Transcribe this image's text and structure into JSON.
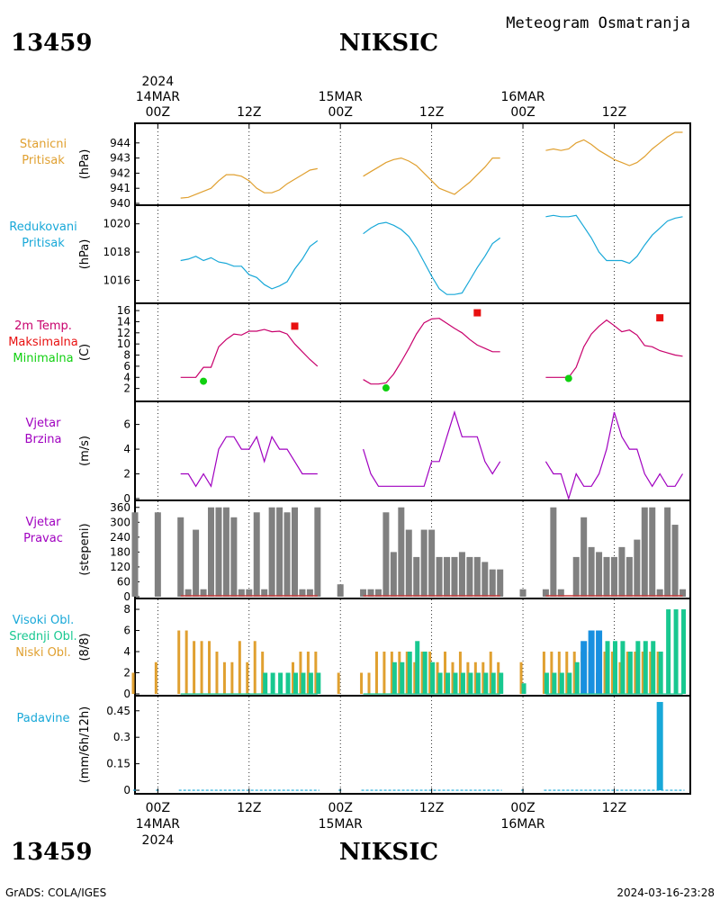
{
  "header": {
    "station_id": "13459",
    "station_name": "NIKSIC",
    "subtitle": "Meteogram Osmatranja"
  },
  "footer": {
    "station_id": "13459",
    "station_name": "NIKSIC",
    "credit": "GrADS: COLA/IGES",
    "timestamp": "2024-03-16-23:28"
  },
  "time_axis": {
    "year": "2024",
    "ticks": [
      {
        "t": 0,
        "time": "00Z",
        "date": "14MAR",
        "year": "2024"
      },
      {
        "t": 12,
        "time": "12Z"
      },
      {
        "t": 24,
        "time": "00Z",
        "date": "15MAR"
      },
      {
        "t": 36,
        "time": "12Z"
      },
      {
        "t": 48,
        "time": "00Z",
        "date": "16MAR"
      },
      {
        "t": 60,
        "time": "12Z"
      }
    ],
    "range_hours": [
      -3,
      70
    ]
  },
  "colors": {
    "pressure": "#e0a030",
    "reduced_pressure": "#18a8d8",
    "temperature": "#c8006c",
    "max": "#e81010",
    "min": "#10d010",
    "wind_speed": "#a000c0",
    "wind_dir_bar": "#808080",
    "wind_dir_base": "#c83c3c",
    "low_cloud": "#e0a030",
    "mid_cloud": "#18c890",
    "high_cloud": "#1890e0",
    "precip": "#18a8d8"
  },
  "chart_data": [
    {
      "type": "line",
      "title": "Stanicni Pritisak",
      "label_lines": [
        "Stanicni",
        "Pritisak"
      ],
      "ylabel": "(hPa)",
      "ylim": [
        940,
        945
      ],
      "yticks": [
        940,
        941,
        942,
        943,
        944
      ],
      "series": [
        {
          "segment": 1,
          "x": [
            3,
            4,
            5,
            6,
            7,
            8,
            9,
            10,
            11,
            12,
            13,
            14,
            15,
            16,
            17,
            18,
            19,
            20,
            21
          ],
          "y": [
            940.35,
            940.4,
            940.6,
            940.8,
            941.0,
            941.5,
            941.9,
            941.9,
            941.8,
            941.5,
            941.0,
            940.7,
            940.7,
            940.9,
            941.3,
            941.6,
            941.9,
            942.2,
            942.3
          ]
        },
        {
          "segment": 2,
          "x": [
            27,
            28,
            29,
            30,
            31,
            32,
            33,
            34,
            35,
            36,
            37,
            38,
            39,
            40,
            41,
            42,
            43,
            44,
            45
          ],
          "y": [
            941.8,
            942.1,
            942.4,
            942.7,
            942.9,
            943.0,
            942.8,
            942.5,
            942.0,
            941.5,
            941.0,
            940.8,
            940.6,
            941.0,
            941.4,
            941.9,
            942.4,
            943.0,
            943.0
          ]
        },
        {
          "segment": 3,
          "x": [
            51,
            52,
            53,
            54,
            55,
            56,
            57,
            58,
            59,
            60,
            61,
            62,
            63,
            64,
            65,
            66,
            67,
            68,
            69
          ],
          "y": [
            943.5,
            943.6,
            943.5,
            943.6,
            944.0,
            944.2,
            943.9,
            943.5,
            943.2,
            942.9,
            942.7,
            942.5,
            942.7,
            943.1,
            943.6,
            944.0,
            944.4,
            944.7,
            944.7
          ]
        }
      ]
    },
    {
      "type": "line",
      "title": "Redukovani Pritisak",
      "label_lines": [
        "Redukovani",
        "Pritisak"
      ],
      "ylabel": "(hPa)",
      "ylim": [
        1014.5,
        1021
      ],
      "yticks": [
        1016,
        1018,
        1020
      ],
      "series": [
        {
          "segment": 1,
          "x": [
            3,
            4,
            5,
            6,
            7,
            8,
            9,
            10,
            11,
            12,
            13,
            14,
            15,
            16,
            17,
            18,
            19,
            20,
            21
          ],
          "y": [
            1017.4,
            1017.5,
            1017.7,
            1017.4,
            1017.6,
            1017.3,
            1017.2,
            1017.0,
            1017.0,
            1016.4,
            1016.2,
            1015.7,
            1015.4,
            1015.6,
            1015.9,
            1016.8,
            1017.5,
            1018.4,
            1018.8
          ]
        },
        {
          "segment": 2,
          "x": [
            27,
            28,
            29,
            30,
            31,
            32,
            33,
            34,
            35,
            36,
            37,
            38,
            39,
            40,
            41,
            42,
            43,
            44,
            45
          ],
          "y": [
            1019.3,
            1019.7,
            1020.0,
            1020.1,
            1019.9,
            1019.6,
            1019.1,
            1018.3,
            1017.3,
            1016.3,
            1015.4,
            1015.0,
            1015.0,
            1015.1,
            1016.0,
            1016.9,
            1017.7,
            1018.6,
            1019.0
          ]
        },
        {
          "segment": 3,
          "x": [
            51,
            52,
            53,
            54,
            55,
            56,
            57,
            58,
            59,
            60,
            61,
            62,
            63,
            64,
            65,
            66,
            67,
            68,
            69
          ],
          "y": [
            1020.5,
            1020.6,
            1020.5,
            1020.5,
            1020.6,
            1019.8,
            1019.0,
            1018.0,
            1017.4,
            1017.4,
            1017.4,
            1017.2,
            1017.7,
            1018.5,
            1019.2,
            1019.7,
            1020.2,
            1020.4,
            1020.5
          ]
        }
      ]
    },
    {
      "type": "line",
      "title": "2m Temp. Maksimalna Minimalna",
      "label_lines": [
        "2m Temp.",
        "Maksimalna",
        "Minimalna"
      ],
      "ylabel": "(C)",
      "ylim": [
        0,
        16.5
      ],
      "yticks": [
        2,
        4,
        6,
        8,
        10,
        12,
        14,
        16
      ],
      "series": [
        {
          "segment": 1,
          "x": [
            3,
            4,
            5,
            6,
            7,
            8,
            9,
            10,
            11,
            12,
            13,
            14,
            15,
            16,
            17,
            18,
            19,
            20,
            21
          ],
          "y": [
            4.0,
            4.0,
            4.0,
            5.8,
            5.8,
            9.5,
            10.8,
            11.8,
            11.6,
            12.3,
            12.3,
            12.6,
            12.2,
            12.3,
            11.8,
            10.0,
            8.6,
            7.2,
            6.0
          ]
        },
        {
          "segment": 2,
          "x": [
            27,
            28,
            29,
            30,
            31,
            32,
            33,
            34,
            35,
            36,
            37,
            38,
            39,
            40,
            41,
            42,
            43,
            44,
            45
          ],
          "y": [
            3.6,
            2.8,
            2.8,
            3.0,
            4.6,
            6.8,
            9.2,
            11.8,
            13.8,
            14.5,
            14.6,
            13.7,
            12.8,
            12.0,
            10.8,
            9.8,
            9.2,
            8.6,
            8.6
          ]
        },
        {
          "segment": 3,
          "x": [
            51,
            52,
            53,
            54,
            55,
            56,
            57,
            58,
            59,
            60,
            61,
            62,
            63,
            64,
            65,
            66,
            67,
            68,
            69
          ],
          "y": [
            4.0,
            4.0,
            4.0,
            4.0,
            5.8,
            9.5,
            11.8,
            13.2,
            14.3,
            13.3,
            12.2,
            12.5,
            11.6,
            9.7,
            9.5,
            8.8,
            8.4,
            8.0,
            7.8
          ]
        }
      ],
      "maximum": {
        "x": [
          18,
          42,
          66
        ],
        "y": [
          13.2,
          15.6,
          14.7
        ]
      },
      "minimum": {
        "x": [
          6,
          30,
          54
        ],
        "y": [
          3.3,
          2.1,
          3.8
        ]
      }
    },
    {
      "type": "line",
      "title": "Vjetar Brzina",
      "label_lines": [
        "Vjetar",
        "Brzina"
      ],
      "ylabel": "(m/s)",
      "ylim": [
        0,
        7.5
      ],
      "yticks": [
        0,
        2,
        4,
        6
      ],
      "series": [
        {
          "segment": 1,
          "x": [
            3,
            4,
            5,
            6,
            7,
            8,
            9,
            10,
            11,
            12,
            13,
            14,
            15,
            16,
            17,
            18,
            19,
            20,
            21
          ],
          "y": [
            2,
            2,
            1,
            2,
            1,
            4,
            5,
            5,
            4,
            4,
            5,
            3,
            5,
            4,
            4,
            3,
            2,
            2,
            2
          ]
        },
        {
          "segment": 2,
          "x": [
            27,
            28,
            29,
            30,
            31,
            32,
            33,
            34,
            35,
            36,
            37,
            38,
            39,
            40,
            41,
            42,
            43,
            44,
            45
          ],
          "y": [
            4,
            2,
            1,
            1,
            1,
            1,
            1,
            1,
            1,
            3,
            3,
            5,
            7,
            5,
            5,
            5,
            3,
            2,
            3
          ]
        },
        {
          "segment": 3,
          "x": [
            51,
            52,
            53,
            54,
            55,
            56,
            57,
            58,
            59,
            60,
            61,
            62,
            63,
            64,
            65,
            66,
            67,
            68,
            69
          ],
          "y": [
            3,
            2,
            2,
            0,
            2,
            1,
            1,
            2,
            4,
            7,
            5,
            4,
            4,
            2,
            1,
            2,
            1,
            1,
            2
          ]
        }
      ]
    },
    {
      "type": "bar",
      "title": "Vjetar Pravac",
      "label_lines": [
        "Vjetar",
        "Pravac"
      ],
      "ylabel": "(stepeni)",
      "ylim": [
        0,
        370
      ],
      "yticks": [
        0,
        60,
        120,
        180,
        240,
        300,
        360
      ],
      "x": [
        -3,
        0,
        3,
        4,
        5,
        6,
        7,
        8,
        9,
        10,
        11,
        12,
        13,
        14,
        15,
        16,
        17,
        18,
        19,
        20,
        21,
        24,
        27,
        28,
        29,
        30,
        31,
        32,
        33,
        34,
        35,
        36,
        37,
        38,
        39,
        40,
        41,
        42,
        43,
        44,
        45,
        48,
        51,
        52,
        53,
        54,
        55,
        56,
        57,
        58,
        59,
        60,
        61,
        62,
        63,
        64,
        65,
        66,
        67,
        68,
        69
      ],
      "values": [
        340,
        340,
        320,
        30,
        270,
        30,
        360,
        360,
        360,
        320,
        30,
        30,
        340,
        30,
        360,
        360,
        340,
        360,
        30,
        30,
        360,
        50,
        30,
        30,
        30,
        340,
        180,
        360,
        270,
        160,
        270,
        270,
        160,
        160,
        160,
        180,
        160,
        160,
        140,
        110,
        110,
        30,
        30,
        360,
        30,
        0,
        160,
        320,
        200,
        180,
        160,
        160,
        200,
        160,
        230,
        360,
        360,
        30,
        360,
        290,
        30
      ]
    },
    {
      "type": "bar",
      "title": "Visoki Obl. Srednji Obl. Niski Obl.",
      "label_lines": [
        "Visoki Obl.",
        "Srednji Obl.",
        "Niski Obl."
      ],
      "ylabel": "(8/8)",
      "ylim": [
        0,
        8.6
      ],
      "yticks": [
        0,
        2,
        4,
        6,
        8
      ],
      "x": [
        -3,
        0,
        3,
        4,
        5,
        6,
        7,
        8,
        9,
        10,
        11,
        12,
        13,
        14,
        15,
        16,
        17,
        18,
        19,
        20,
        21,
        24,
        27,
        28,
        29,
        30,
        31,
        32,
        33,
        34,
        35,
        36,
        37,
        38,
        39,
        40,
        41,
        42,
        43,
        44,
        45,
        48,
        51,
        52,
        53,
        54,
        55,
        56,
        57,
        58,
        59,
        60,
        61,
        62,
        63,
        64,
        65,
        66,
        67,
        68,
        69
      ],
      "series": [
        {
          "name": "Visoki Obl.",
          "values": [
            0,
            0,
            0,
            0,
            0,
            0,
            0,
            0,
            0,
            0,
            0,
            0,
            0,
            0,
            0,
            0,
            0,
            0,
            0,
            0,
            0,
            0,
            0,
            0,
            0,
            0,
            0,
            0,
            0,
            0,
            0,
            0,
            0,
            0,
            0,
            0,
            0,
            0,
            0,
            0,
            0,
            0,
            0,
            0,
            0,
            0,
            0,
            5,
            6,
            6,
            0,
            0,
            0,
            0,
            0,
            0,
            0,
            0,
            0,
            0,
            0
          ]
        },
        {
          "name": "Srednji Obl.",
          "values": [
            0,
            0,
            0,
            0,
            0,
            0,
            0,
            0,
            0,
            0,
            0,
            0,
            0,
            2,
            2,
            2,
            2,
            2,
            2,
            2,
            2,
            0,
            0,
            0,
            0,
            0,
            3,
            3,
            4,
            5,
            4,
            3,
            2,
            2,
            2,
            2,
            2,
            2,
            2,
            2,
            2,
            1,
            2,
            2,
            2,
            2,
            3,
            0,
            0,
            0,
            5,
            5,
            5,
            4,
            5,
            5,
            5,
            4,
            8,
            8,
            8
          ]
        },
        {
          "name": "Niski Obl.",
          "values": [
            2,
            3,
            6,
            6,
            5,
            5,
            5,
            4,
            3,
            3,
            5,
            3,
            5,
            4,
            0,
            0,
            0,
            3,
            4,
            4,
            4,
            2,
            2,
            2,
            4,
            4,
            4,
            4,
            4,
            3,
            4,
            4,
            3,
            4,
            3,
            4,
            3,
            3,
            3,
            4,
            3,
            3,
            4,
            4,
            4,
            4,
            4,
            4,
            4,
            2,
            4,
            4,
            3,
            4,
            4,
            4,
            4,
            4,
            0,
            0,
            0
          ]
        }
      ]
    },
    {
      "type": "bar",
      "title": "Padavine",
      "label_lines": [
        "Padavine"
      ],
      "ylabel": "(mm/6h/12h)",
      "ylim": [
        -0.01,
        0.51
      ],
      "yticks": [
        0,
        0.15,
        0.3,
        0.45
      ],
      "ytick_labels": [
        "0",
        "0.15",
        "0.3",
        "0.45"
      ],
      "x": [
        66
      ],
      "values": [
        0.5
      ],
      "trace_segments": [
        [
          -3,
          -3
        ],
        [
          0,
          0
        ],
        [
          3,
          21
        ],
        [
          24,
          24
        ],
        [
          27,
          45
        ],
        [
          48,
          48
        ],
        [
          51,
          69
        ]
      ]
    }
  ]
}
